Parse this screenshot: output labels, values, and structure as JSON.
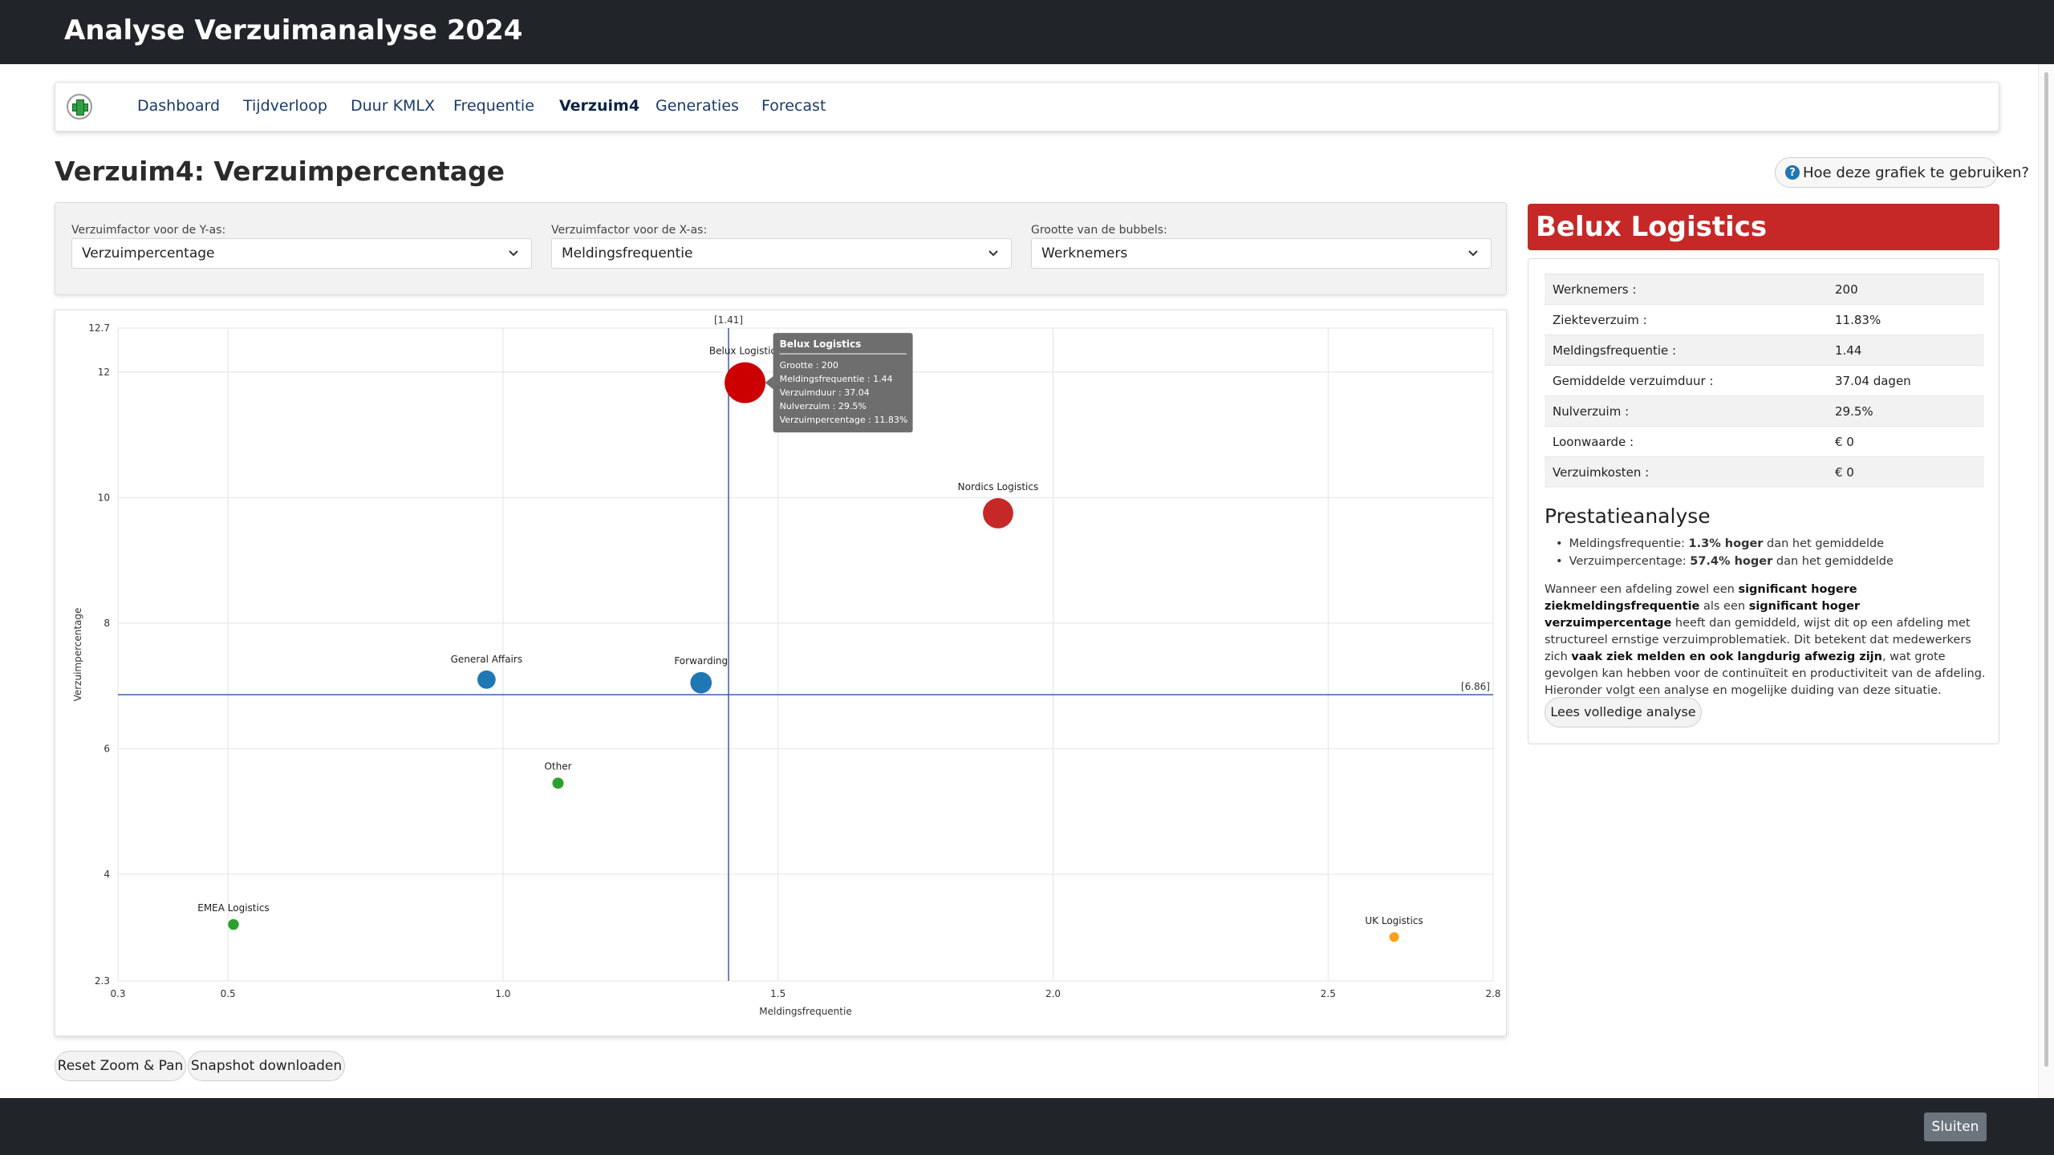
{
  "app": {
    "title": "Analyse Verzuimanalyse 2024"
  },
  "nav": {
    "items": [
      {
        "label": "Dashboard"
      },
      {
        "label": "Tijdverloop"
      },
      {
        "label": "Duur KMLX"
      },
      {
        "label": "Frequentie"
      },
      {
        "label": "Verzuim4",
        "active": true
      },
      {
        "label": "Generaties"
      },
      {
        "label": "Forecast"
      }
    ]
  },
  "page": {
    "title": "Verzuim4: Verzuimpercentage",
    "help_label": "Hoe deze grafiek te gebruiken?"
  },
  "filters": {
    "y_axis": {
      "label": "Verzuimfactor voor de Y-as:",
      "value": "Verzuimpercentage"
    },
    "x_axis": {
      "label": "Verzuimfactor voor de X-as:",
      "value": "Meldingsfrequentie"
    },
    "bubble_size": {
      "label": "Grootte van de bubbels:",
      "value": "Werknemers"
    }
  },
  "chart_data": {
    "type": "scatter",
    "xlabel": "Meldingsfrequentie",
    "ylabel": "Verzuimpercentage",
    "xlim": [
      0.3,
      2.8
    ],
    "ylim": [
      2.3,
      12.7
    ],
    "xticks": [
      0.3,
      0.5,
      1.0,
      1.5,
      2.0,
      2.5,
      2.8
    ],
    "xtick_labels": [
      "0.3",
      "0.5",
      "1.0",
      "1.5",
      "2.0",
      "2.5",
      "2.8"
    ],
    "yticks": [
      2.3,
      4,
      6,
      8,
      10,
      12,
      12.7
    ],
    "ytick_labels": [
      "2.3",
      "4",
      "6",
      "8",
      "10",
      "12",
      "12.7"
    ],
    "grid": true,
    "ref_x": 1.41,
    "ref_x_label": "[1.41]",
    "ref_y": 6.86,
    "ref_y_label": "[6.86]",
    "points": [
      {
        "name": "Belux Logistics",
        "x": 1.44,
        "y": 11.83,
        "size": 200,
        "color": "#cc0000"
      },
      {
        "name": "Nordics Logistics",
        "x": 1.9,
        "y": 9.75,
        "size": 110,
        "color": "#c62828"
      },
      {
        "name": "General Affairs",
        "x": 0.97,
        "y": 7.1,
        "size": 40,
        "color": "#1f77b4"
      },
      {
        "name": "Forwarding",
        "x": 1.36,
        "y": 7.05,
        "size": 55,
        "color": "#1f77b4"
      },
      {
        "name": "Other",
        "x": 1.1,
        "y": 5.45,
        "size": 15,
        "color": "#2ca02c"
      },
      {
        "name": "EMEA Logistics",
        "x": 0.51,
        "y": 3.2,
        "size": 14,
        "color": "#2ca02c"
      },
      {
        "name": "UK Logistics",
        "x": 2.62,
        "y": 3.0,
        "size": 8,
        "color": "#ff9f1a"
      }
    ],
    "tooltip": {
      "title": "Belux Logistics",
      "lines": [
        "Grootte : 200",
        "Meldingsfrequentie : 1.44",
        "Verzuimduur : 37.04",
        "Nulverzuim : 29.5%",
        "Verzuimpercentage : 11.83%"
      ]
    }
  },
  "actions": {
    "reset_label": "Reset Zoom & Pan",
    "snapshot_label": "Snapshot downloaden"
  },
  "side": {
    "title": "Belux Logistics",
    "metrics": [
      {
        "label": "Werknemers :",
        "value": "200"
      },
      {
        "label": "Ziekteverzuim :",
        "value": "11.83%"
      },
      {
        "label": "Meldingsfrequentie :",
        "value": "1.44"
      },
      {
        "label": "Gemiddelde verzuimduur :",
        "value": "37.04 dagen"
      },
      {
        "label": "Nulverzuim :",
        "value": "29.5%"
      },
      {
        "label": "Loonwaarde :",
        "value": "€ 0"
      },
      {
        "label": "Verzuimkosten :",
        "value": "€ 0"
      }
    ],
    "perf_title": "Prestatieanalyse",
    "perf_items": [
      {
        "pre": "Meldingsfrequentie: ",
        "bold": "1.3% hoger",
        "post": " dan het gemiddelde"
      },
      {
        "pre": "Verzuimpercentage: ",
        "bold": "57.4% hoger",
        "post": " dan het gemiddelde"
      }
    ],
    "text": {
      "t1": "Wanneer een afdeling zowel een ",
      "b1": "significant hogere ziekmeldingsfrequentie",
      "t2": " als een ",
      "b2": "significant hoger verzuimpercentage",
      "t3": " heeft dan gemiddeld, wijst dit op een afdeling met structureel ernstige verzuimproblematiek. Dit betekent dat medewerkers zich ",
      "b3": "vaak ziek melden en ook langdurig afwezig zijn",
      "t4": ", wat grote gevolgen kan hebben voor de continuïteit en productiviteit van de afdeling. Hieronder volgt een analyse en mogelijke duiding van deze situatie."
    },
    "read_more_label": "Lees volledige analyse"
  },
  "footer": {
    "close_label": "Sluiten"
  }
}
